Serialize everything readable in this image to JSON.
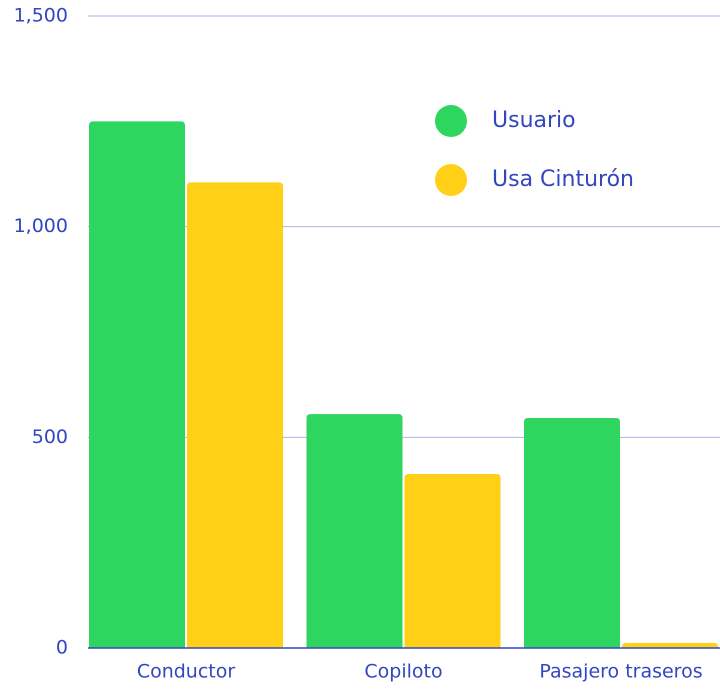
{
  "chart_data": {
    "type": "bar",
    "categories": [
      "Conductor",
      "Copiloto",
      "Pasajero traseros"
    ],
    "series": [
      {
        "name": "Usuario",
        "color": "#2ed65f",
        "values": [
          1250,
          555,
          546
        ]
      },
      {
        "name": "Usa Cinturón",
        "color": "#ffd015",
        "values": [
          1105,
          413,
          12
        ]
      }
    ],
    "ylim": [
      0,
      1500
    ],
    "yticks": [
      0,
      500,
      {
        "value": 1000,
        "label": "1,000"
      },
      {
        "value": 1500,
        "label": "1,500"
      }
    ],
    "grid": true,
    "legend": "upper right"
  }
}
